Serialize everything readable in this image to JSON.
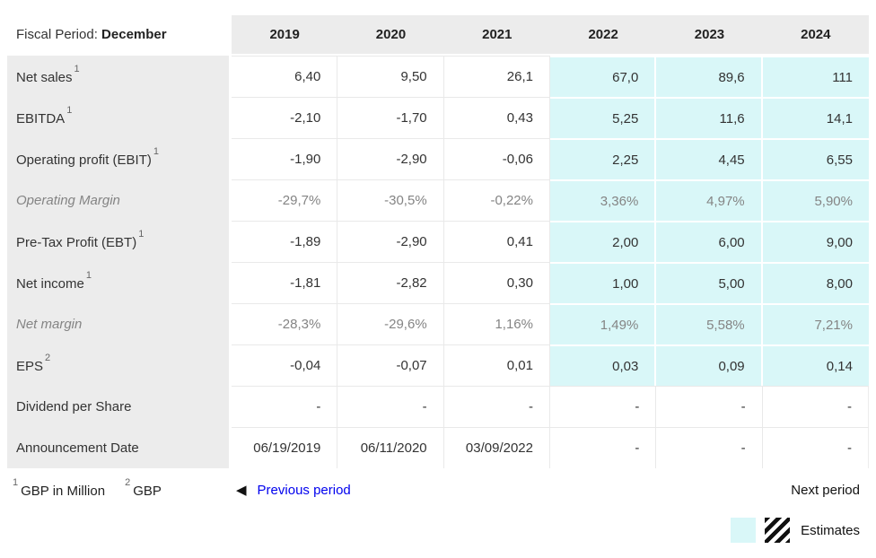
{
  "accent": {
    "estimate_bg": "#d9f7f8",
    "label_bg": "#ececec",
    "link_blue": "#0000ee"
  },
  "table": {
    "fiscal_period_label": "Fiscal Period:",
    "fiscal_period_value": "December",
    "years": [
      "2019",
      "2020",
      "2021",
      "2022",
      "2023",
      "2024"
    ],
    "estimate_years": [
      "2022",
      "2023",
      "2024"
    ],
    "rows": [
      {
        "label": "Net sales",
        "sup": "1",
        "muted": false,
        "est": true,
        "values": [
          "6,40",
          "9,50",
          "26,1",
          "67,0",
          "89,6",
          "111"
        ]
      },
      {
        "label": "EBITDA",
        "sup": "1",
        "muted": false,
        "est": true,
        "values": [
          "-2,10",
          "-1,70",
          "0,43",
          "5,25",
          "11,6",
          "14,1"
        ]
      },
      {
        "label": "Operating profit (EBIT)",
        "sup": "1",
        "muted": false,
        "est": true,
        "values": [
          "-1,90",
          "-2,90",
          "-0,06",
          "2,25",
          "4,45",
          "6,55"
        ]
      },
      {
        "label": "Operating Margin",
        "sup": "",
        "muted": true,
        "est": true,
        "values": [
          "-29,7%",
          "-30,5%",
          "-0,22%",
          "3,36%",
          "4,97%",
          "5,90%"
        ]
      },
      {
        "label": "Pre-Tax Profit (EBT)",
        "sup": "1",
        "muted": false,
        "est": true,
        "values": [
          "-1,89",
          "-2,90",
          "0,41",
          "2,00",
          "6,00",
          "9,00"
        ]
      },
      {
        "label": "Net income",
        "sup": "1",
        "muted": false,
        "est": true,
        "values": [
          "-1,81",
          "-2,82",
          "0,30",
          "1,00",
          "5,00",
          "8,00"
        ]
      },
      {
        "label": "Net margin",
        "sup": "",
        "muted": true,
        "est": true,
        "values": [
          "-28,3%",
          "-29,6%",
          "1,16%",
          "1,49%",
          "5,58%",
          "7,21%"
        ]
      },
      {
        "label": "EPS",
        "sup": "2",
        "muted": false,
        "est": true,
        "values": [
          "-0,04",
          "-0,07",
          "0,01",
          "0,03",
          "0,09",
          "0,14"
        ]
      },
      {
        "label": "Dividend per Share",
        "sup": "",
        "muted": false,
        "est": false,
        "values": [
          "-",
          "-",
          "-",
          "-",
          "-",
          "-"
        ]
      },
      {
        "label": "Announcement Date",
        "sup": "",
        "muted": false,
        "est": false,
        "values": [
          "06/19/2019",
          "06/11/2020",
          "03/09/2022",
          "-",
          "-",
          "-"
        ]
      }
    ]
  },
  "footer": {
    "footnote1_sup": "1",
    "footnote1_text": "GBP in Million",
    "footnote2_sup": "2",
    "footnote2_text": "GBP",
    "previous_label": "Previous period",
    "previous_arrow": "◀",
    "next_label": "Next period",
    "estimates_label": "Estimates"
  }
}
